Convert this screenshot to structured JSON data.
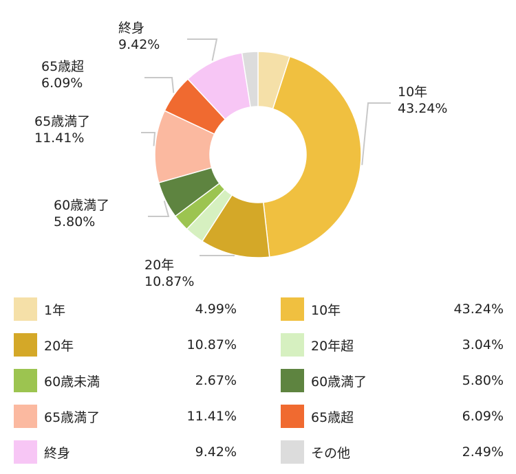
{
  "chart_data": {
    "type": "pie",
    "variant": "donut",
    "title": "",
    "slices": [
      {
        "label": "1年",
        "value": 4.99,
        "display": "4.99%",
        "color": "#F5E0A8"
      },
      {
        "label": "10年",
        "value": 43.24,
        "display": "43.24%",
        "color": "#F0C040"
      },
      {
        "label": "20年",
        "value": 10.87,
        "display": "10.87%",
        "color": "#D4A828"
      },
      {
        "label": "20年超",
        "value": 3.04,
        "display": "3.04%",
        "color": "#D6F0C0"
      },
      {
        "label": "60歳未満",
        "value": 2.67,
        "display": "2.67%",
        "color": "#9CC450"
      },
      {
        "label": "60歳満了",
        "value": 5.8,
        "display": "5.80%",
        "color": "#5E8440"
      },
      {
        "label": "65歳満了",
        "value": 11.41,
        "display": "11.41%",
        "color": "#FBB9A0"
      },
      {
        "label": "65歳超",
        "value": 6.09,
        "display": "6.09%",
        "color": "#F06A30"
      },
      {
        "label": "終身",
        "value": 9.42,
        "display": "9.42%",
        "color": "#F7C6F5"
      },
      {
        "label": "その他",
        "value": 2.49,
        "display": "2.49%",
        "color": "#DCDCDC"
      }
    ],
    "callouts": [
      1,
      2,
      5,
      6,
      7,
      8
    ],
    "legend_placement": "bottom"
  }
}
